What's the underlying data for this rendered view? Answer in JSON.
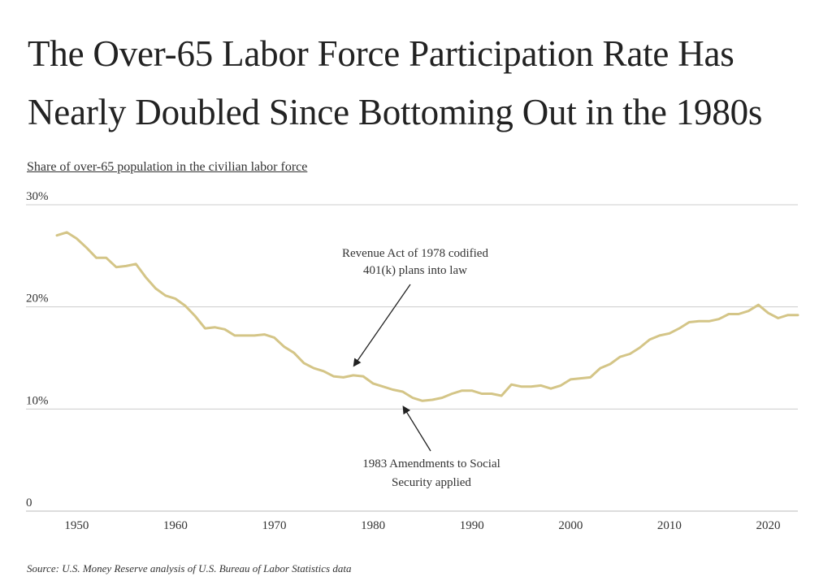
{
  "title_line1": "The Over-65 Labor Force Participation Rate Has",
  "title_line2": "Nearly Doubled Since Bottoming Out in the 1980s",
  "subtitle": "Share of over-65 population in the civilian labor force",
  "source": "Source: U.S. Money Reserve analysis of U.S. Bureau of Labor Statistics data",
  "colors": {
    "line": "#D4C587",
    "grid": "#CCCCCC",
    "arrow": "#222222"
  },
  "chart_data": {
    "type": "line",
    "title": "The Over-65 Labor Force Participation Rate Has Nearly Doubled Since Bottoming Out in the 1980s",
    "subtitle": "Share of over-65 population in the civilian labor force",
    "xlabel": "",
    "ylabel": "",
    "xlim": [
      1947,
      2023
    ],
    "ylim": [
      0,
      30
    ],
    "grid": true,
    "y_ticks": [
      {
        "value": 0,
        "label": "0"
      },
      {
        "value": 10,
        "label": "10%"
      },
      {
        "value": 20,
        "label": "20%"
      },
      {
        "value": 30,
        "label": "30%"
      }
    ],
    "x_ticks": [
      {
        "value": 1950,
        "label": "1950"
      },
      {
        "value": 1960,
        "label": "1960"
      },
      {
        "value": 1970,
        "label": "1970"
      },
      {
        "value": 1980,
        "label": "1980"
      },
      {
        "value": 1990,
        "label": "1990"
      },
      {
        "value": 2000,
        "label": "2000"
      },
      {
        "value": 2010,
        "label": "2010"
      },
      {
        "value": 2020,
        "label": "2020"
      }
    ],
    "series": [
      {
        "x": [
          1948,
          1949,
          1950,
          1951,
          1952,
          1953,
          1954,
          1955,
          1956,
          1957,
          1958,
          1959,
          1960,
          1961,
          1962,
          1963,
          1964,
          1965,
          1966,
          1967,
          1968,
          1969,
          1970,
          1971,
          1972,
          1973,
          1974,
          1975,
          1976,
          1977,
          1978,
          1979,
          1980,
          1981,
          1982,
          1983,
          1984,
          1985,
          1986,
          1987,
          1988,
          1989,
          1990,
          1991,
          1992,
          1993,
          1994,
          1995,
          1996,
          1997,
          1998,
          1999,
          2000,
          2001,
          2002,
          2003,
          2004,
          2005,
          2006,
          2007,
          2008,
          2009,
          2010,
          2011,
          2012,
          2013,
          2014,
          2015,
          2016,
          2017,
          2018,
          2019,
          2020,
          2021,
          2022,
          2023
        ],
        "y": [
          27.0,
          27.3,
          26.7,
          25.8,
          24.8,
          24.8,
          23.9,
          24.0,
          24.2,
          22.9,
          21.8,
          21.1,
          20.8,
          20.1,
          19.1,
          17.9,
          18.0,
          17.8,
          17.2,
          17.2,
          17.2,
          17.3,
          17.0,
          16.1,
          15.5,
          14.5,
          14.0,
          13.7,
          13.2,
          13.1,
          13.3,
          13.2,
          12.5,
          12.2,
          11.9,
          11.7,
          11.1,
          10.8,
          10.9,
          11.1,
          11.5,
          11.8,
          11.8,
          11.5,
          11.5,
          11.3,
          12.4,
          12.2,
          12.2,
          12.3,
          12.0,
          12.3,
          12.9,
          13.0,
          13.1,
          14.0,
          14.4,
          15.1,
          15.4,
          16.0,
          16.8,
          17.2,
          17.4,
          17.9,
          18.5,
          18.6,
          18.6,
          18.8,
          19.3,
          19.3,
          19.6,
          20.2,
          19.4,
          18.9,
          19.2,
          19.2
        ]
      }
    ],
    "annotations": [
      {
        "lines": [
          "Revenue Act of 1978 codified",
          "401(k) plans into law"
        ],
        "x": 1978,
        "y": 13.3
      },
      {
        "lines": [
          "1983 Amendments to Social",
          "Security applied"
        ],
        "x": 1983,
        "y": 11.0
      }
    ]
  }
}
